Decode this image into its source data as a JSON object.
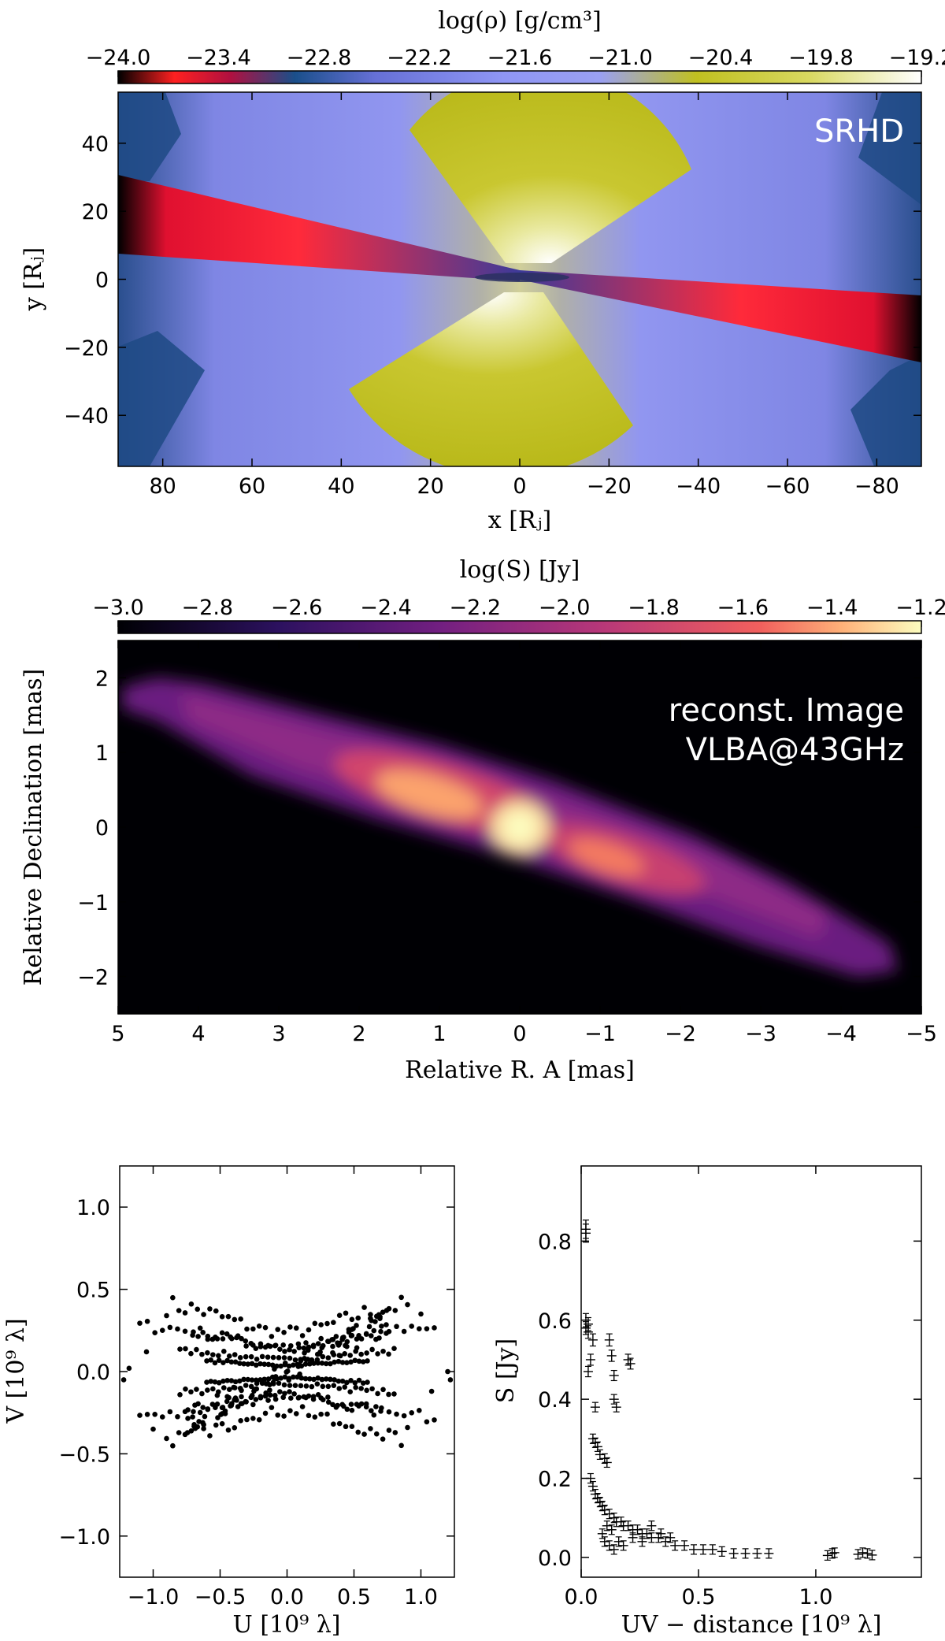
{
  "chart_data": [
    {
      "type": "heatmap",
      "name": "density_map",
      "colorbar_label": "log(ρ) [g/cm³]",
      "colorbar_ticks": [
        "−24.0",
        "−23.4",
        "−22.8",
        "−22.2",
        "−21.6",
        "−21.0",
        "−20.4",
        "−19.8",
        "−19.2"
      ],
      "colorbar_range": [
        -24.0,
        -19.2
      ],
      "xlabel": "x [Rⱼ]",
      "ylabel": "y [Rⱼ]",
      "xlim": [
        90,
        -90
      ],
      "ylim": [
        -55,
        55
      ],
      "xticks": [
        "80",
        "60",
        "40",
        "20",
        "0",
        "−20",
        "−40",
        "−60",
        "−80"
      ],
      "yticks": [
        "40",
        "20",
        "0",
        "−20",
        "−40"
      ],
      "annotation": "SRHD"
    },
    {
      "type": "heatmap",
      "name": "reconstructed_image",
      "colorbar_label": "log(S) [Jy]",
      "colorbar_ticks": [
        "−3.0",
        "−2.8",
        "−2.6",
        "−2.4",
        "−2.2",
        "−2.0",
        "−1.8",
        "−1.6",
        "−1.4",
        "−1.2"
      ],
      "colorbar_range": [
        -3.0,
        -1.2
      ],
      "xlabel": "Relative R. A [mas]",
      "ylabel": "Relative Declination [mas]",
      "xlim": [
        5,
        -5
      ],
      "ylim": [
        -2.5,
        2.5
      ],
      "xticks": [
        "5",
        "4",
        "3",
        "2",
        "1",
        "0",
        "−1",
        "−2",
        "−3",
        "−4",
        "−5"
      ],
      "yticks": [
        "2",
        "1",
        "0",
        "−1",
        "−2"
      ],
      "annotation_line1": "reconst. Image",
      "annotation_line2": "VLBA@43GHz"
    },
    {
      "type": "scatter",
      "name": "uv_coverage",
      "xlabel": "U [10⁹ λ]",
      "ylabel": "V [10⁹ λ]",
      "xlim": [
        -1.25,
        1.25
      ],
      "ylim": [
        -1.25,
        1.25
      ],
      "xticks": [
        "−1.0",
        "−0.5",
        "0.0",
        "0.5",
        "1.0"
      ],
      "yticks": [
        "1.0",
        "0.5",
        "0.0",
        "−0.5",
        "−1.0"
      ],
      "description": "symmetric uv tracks; |U| up to ~1.2, |V| up to ~0.45"
    },
    {
      "type": "scatter",
      "name": "visibility_amplitude",
      "xlabel": "UV − distance [10⁹ λ]",
      "ylabel": "S [Jy]",
      "xlim": [
        0,
        1.45
      ],
      "ylim": [
        -0.05,
        0.99
      ],
      "xticks": [
        "0.0",
        "0.5",
        "1.0"
      ],
      "yticks": [
        "0.8",
        "0.6",
        "0.4",
        "0.2",
        "0.0"
      ],
      "points": [
        [
          0.02,
          0.83
        ],
        [
          0.02,
          0.82
        ],
        [
          0.02,
          0.6
        ],
        [
          0.03,
          0.59
        ],
        [
          0.02,
          0.58
        ],
        [
          0.03,
          0.57
        ],
        [
          0.05,
          0.55
        ],
        [
          0.04,
          0.5
        ],
        [
          0.03,
          0.47
        ],
        [
          0.06,
          0.38
        ],
        [
          0.05,
          0.3
        ],
        [
          0.06,
          0.29
        ],
        [
          0.07,
          0.28
        ],
        [
          0.08,
          0.26
        ],
        [
          0.1,
          0.25
        ],
        [
          0.11,
          0.24
        ],
        [
          0.12,
          0.55
        ],
        [
          0.13,
          0.51
        ],
        [
          0.14,
          0.46
        ],
        [
          0.14,
          0.4
        ],
        [
          0.15,
          0.38
        ],
        [
          0.2,
          0.5
        ],
        [
          0.21,
          0.49
        ],
        [
          0.04,
          0.2
        ],
        [
          0.05,
          0.18
        ],
        [
          0.06,
          0.16
        ],
        [
          0.07,
          0.15
        ],
        [
          0.08,
          0.14
        ],
        [
          0.09,
          0.13
        ],
        [
          0.1,
          0.12
        ],
        [
          0.12,
          0.11
        ],
        [
          0.14,
          0.1
        ],
        [
          0.15,
          0.09
        ],
        [
          0.17,
          0.09
        ],
        [
          0.18,
          0.08
        ],
        [
          0.2,
          0.08
        ],
        [
          0.22,
          0.07
        ],
        [
          0.24,
          0.07
        ],
        [
          0.26,
          0.06
        ],
        [
          0.28,
          0.06
        ],
        [
          0.3,
          0.05
        ],
        [
          0.33,
          0.05
        ],
        [
          0.36,
          0.04
        ],
        [
          0.4,
          0.03
        ],
        [
          0.44,
          0.03
        ],
        [
          0.48,
          0.02
        ],
        [
          0.52,
          0.02
        ],
        [
          0.56,
          0.02
        ],
        [
          0.6,
          0.015
        ],
        [
          0.65,
          0.01
        ],
        [
          0.7,
          0.01
        ],
        [
          0.75,
          0.01
        ],
        [
          0.8,
          0.01
        ],
        [
          0.12,
          0.03
        ],
        [
          0.14,
          0.02
        ],
        [
          0.16,
          0.04
        ],
        [
          0.18,
          0.03
        ],
        [
          0.22,
          0.05
        ],
        [
          0.26,
          0.04
        ],
        [
          0.3,
          0.08
        ],
        [
          0.34,
          0.06
        ],
        [
          0.38,
          0.05
        ],
        [
          0.09,
          0.06
        ],
        [
          0.1,
          0.04
        ],
        [
          0.11,
          0.08
        ],
        [
          0.13,
          0.07
        ],
        [
          1.05,
          0.005
        ],
        [
          1.07,
          0.01
        ],
        [
          1.08,
          0.012
        ],
        [
          1.18,
          0.008
        ],
        [
          1.2,
          0.012
        ],
        [
          1.22,
          0.01
        ],
        [
          1.24,
          0.006
        ]
      ]
    }
  ]
}
